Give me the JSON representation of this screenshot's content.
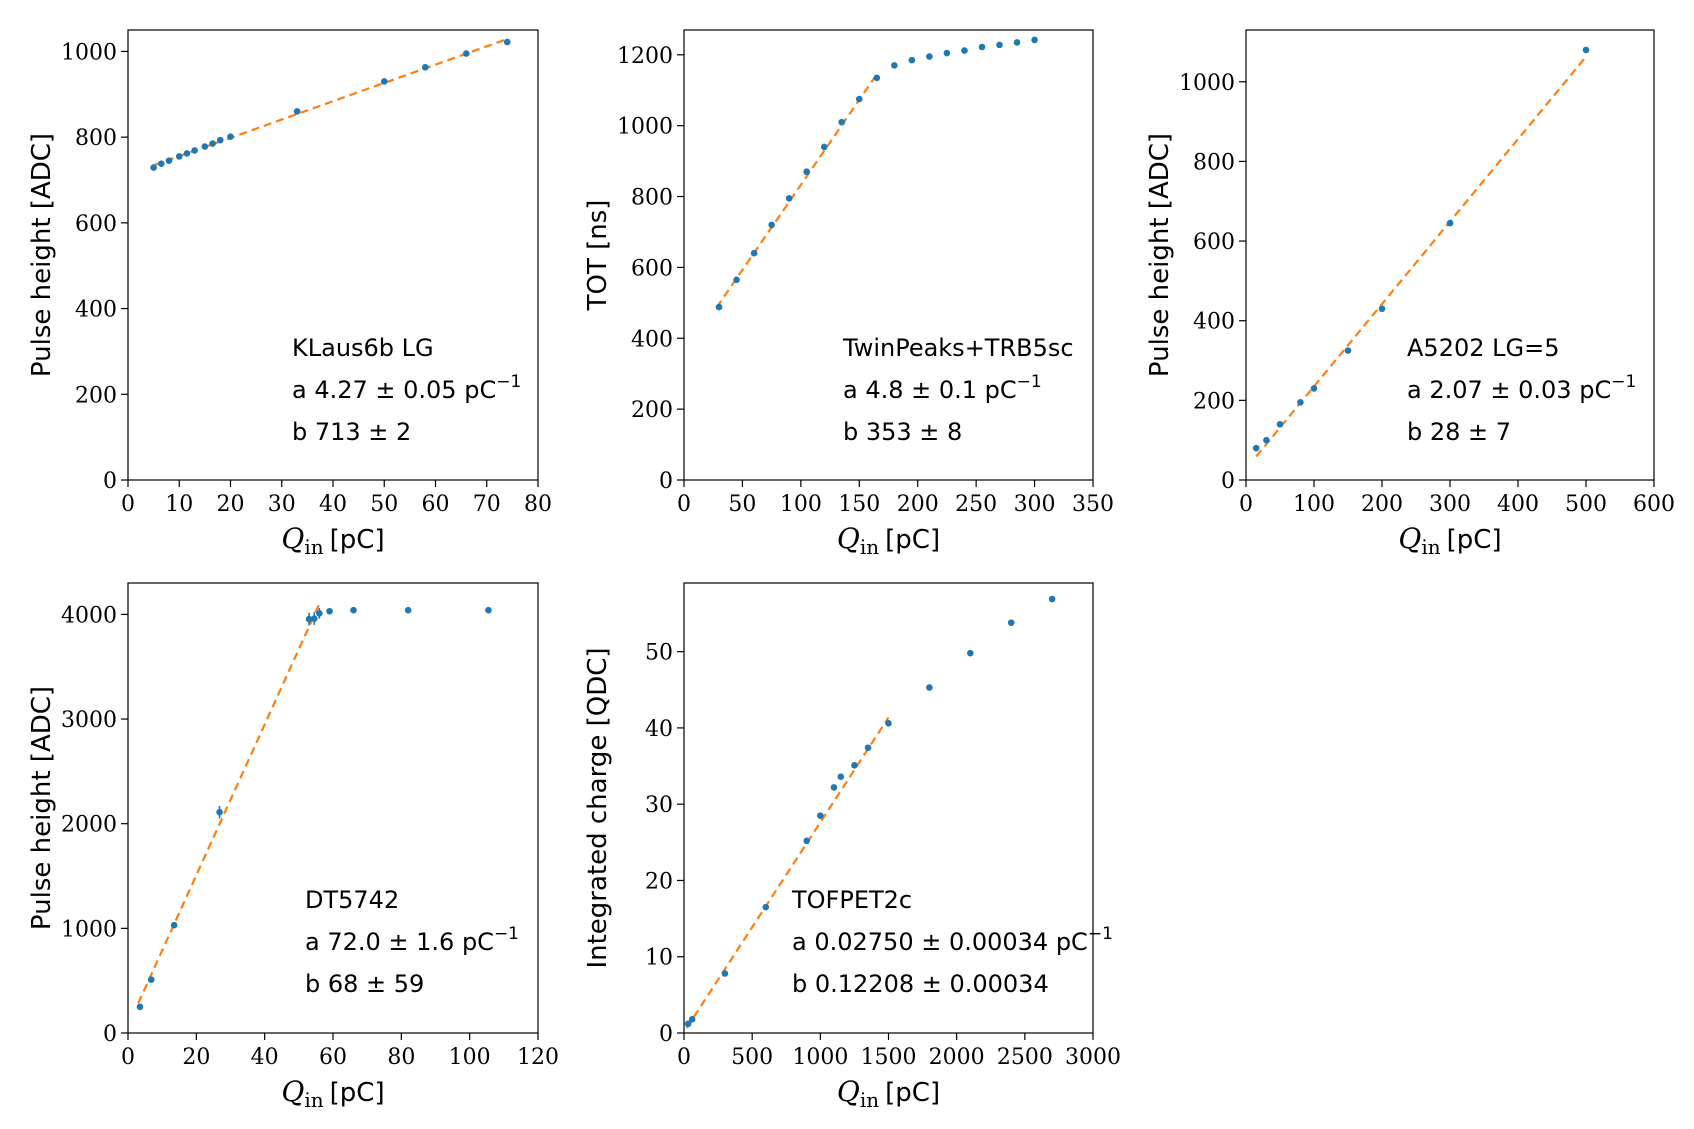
{
  "colors": {
    "points": "#1f77b4",
    "fit": "#ff7f0e"
  },
  "chart_data": [
    {
      "type": "scatter",
      "xlabel": "Q_in [pC]",
      "ylabel": "Pulse height [ADC]",
      "xlim": [
        0,
        80
      ],
      "ylim": [
        0,
        1050
      ],
      "xticks": [
        0,
        10,
        20,
        30,
        40,
        50,
        60,
        70,
        80
      ],
      "yticks": [
        0,
        200,
        400,
        600,
        800,
        1000
      ],
      "points": [
        [
          5,
          729
        ],
        [
          6.5,
          738
        ],
        [
          8,
          745
        ],
        [
          10,
          755
        ],
        [
          11.5,
          762
        ],
        [
          13,
          769
        ],
        [
          15,
          778
        ],
        [
          16.5,
          785
        ],
        [
          18,
          793
        ],
        [
          20,
          801
        ],
        [
          33,
          860
        ],
        [
          50,
          930
        ],
        [
          58,
          963
        ],
        [
          66,
          995
        ],
        [
          74,
          1022
        ]
      ],
      "fit": {
        "a": 4.27,
        "b": 713,
        "x": [
          5,
          74
        ]
      },
      "annotation": [
        "KLaus6b LG",
        "a 4.27 ± 0.05 pC",
        "b 713 ± 2"
      ]
    },
    {
      "type": "scatter",
      "xlabel": "Q_in [pC]",
      "ylabel": "TOT [ns]",
      "xlim": [
        0,
        350
      ],
      "ylim": [
        0,
        1270
      ],
      "xticks": [
        0,
        50,
        100,
        150,
        200,
        250,
        300,
        350
      ],
      "yticks": [
        0,
        200,
        400,
        600,
        800,
        1000,
        1200
      ],
      "points": [
        [
          30,
          488
        ],
        [
          45,
          565
        ],
        [
          60,
          640
        ],
        [
          75,
          720
        ],
        [
          90,
          795
        ],
        [
          105,
          870
        ],
        [
          120,
          940
        ],
        [
          135,
          1010
        ],
        [
          150,
          1075
        ],
        [
          165,
          1135
        ],
        [
          180,
          1170
        ],
        [
          195,
          1185
        ],
        [
          210,
          1195
        ],
        [
          225,
          1205
        ],
        [
          240,
          1212
        ],
        [
          255,
          1222
        ],
        [
          270,
          1228
        ],
        [
          285,
          1235
        ],
        [
          300,
          1242
        ]
      ],
      "fit": {
        "a": 4.8,
        "b": 353,
        "x": [
          28,
          165
        ]
      },
      "annotation": [
        "TwinPeaks+TRB5sc",
        "a 4.8 ± 0.1 pC",
        "b 353 ± 8"
      ]
    },
    {
      "type": "scatter",
      "xlabel": "Q_in [pC]",
      "ylabel": "Pulse height [ADC]",
      "xlim": [
        0,
        600
      ],
      "ylim": [
        0,
        1130
      ],
      "xticks": [
        0,
        100,
        200,
        300,
        400,
        500,
        600
      ],
      "yticks": [
        0,
        200,
        400,
        600,
        800,
        1000
      ],
      "points": [
        [
          15,
          80
        ],
        [
          30,
          100
        ],
        [
          50,
          140
        ],
        [
          80,
          195
        ],
        [
          100,
          230
        ],
        [
          150,
          325
        ],
        [
          200,
          430
        ],
        [
          300,
          645
        ],
        [
          500,
          1080
        ]
      ],
      "fit": {
        "a": 2.07,
        "b": 28,
        "x": [
          15,
          500
        ]
      },
      "annotation": [
        "A5202 LG=5",
        "a 2.07 ± 0.03 pC",
        "b 28 ± 7"
      ]
    },
    {
      "type": "scatter",
      "xlabel": "Q_in [pC]",
      "ylabel": "Pulse height [ADC]",
      "xlim": [
        0,
        120
      ],
      "ylim": [
        0,
        4300
      ],
      "xticks": [
        0,
        20,
        40,
        60,
        80,
        100,
        120
      ],
      "yticks": [
        0,
        1000,
        2000,
        3000,
        4000
      ],
      "points": [
        [
          3.5,
          250,
          0
        ],
        [
          6.8,
          510,
          0
        ],
        [
          13.5,
          1030,
          0
        ],
        [
          26.8,
          2110,
          60
        ],
        [
          53,
          3955,
          60
        ],
        [
          54.5,
          3960,
          60
        ],
        [
          56,
          4010,
          50
        ],
        [
          59,
          4030,
          0
        ],
        [
          66,
          4040,
          0
        ],
        [
          82,
          4040,
          0
        ],
        [
          105.5,
          4040,
          0
        ]
      ],
      "fit": {
        "a": 72.0,
        "b": 68,
        "x": [
          3,
          56
        ]
      },
      "annotation": [
        "DT5742",
        "a 72.0 ± 1.6 pC",
        "b 68 ± 59"
      ]
    },
    {
      "type": "scatter",
      "xlabel": "Q_in [pC]",
      "ylabel": "Integrated charge [QDC]",
      "xlim": [
        0,
        3000
      ],
      "ylim": [
        0,
        59
      ],
      "xticks": [
        0,
        500,
        1000,
        1500,
        2000,
        2500,
        3000
      ],
      "yticks": [
        0,
        10,
        20,
        30,
        40,
        50
      ],
      "points": [
        [
          30,
          1.2
        ],
        [
          60,
          1.8
        ],
        [
          300,
          7.8
        ],
        [
          600,
          16.5
        ],
        [
          900,
          25.2
        ],
        [
          1000,
          28.5
        ],
        [
          1100,
          32.2
        ],
        [
          1150,
          33.6
        ],
        [
          1250,
          35.1
        ],
        [
          1350,
          37.4
        ],
        [
          1500,
          40.6
        ],
        [
          1800,
          45.3
        ],
        [
          2100,
          49.8
        ],
        [
          2400,
          53.8
        ],
        [
          2700,
          56.9
        ]
      ],
      "fit": {
        "a": 0.0275,
        "b": 0.12208,
        "x": [
          20,
          1500
        ]
      },
      "annotation": [
        "TOFPET2c",
        "a 0.02750 ± 0.00034 pC",
        "b 0.12208 ± 0.00034"
      ]
    }
  ]
}
